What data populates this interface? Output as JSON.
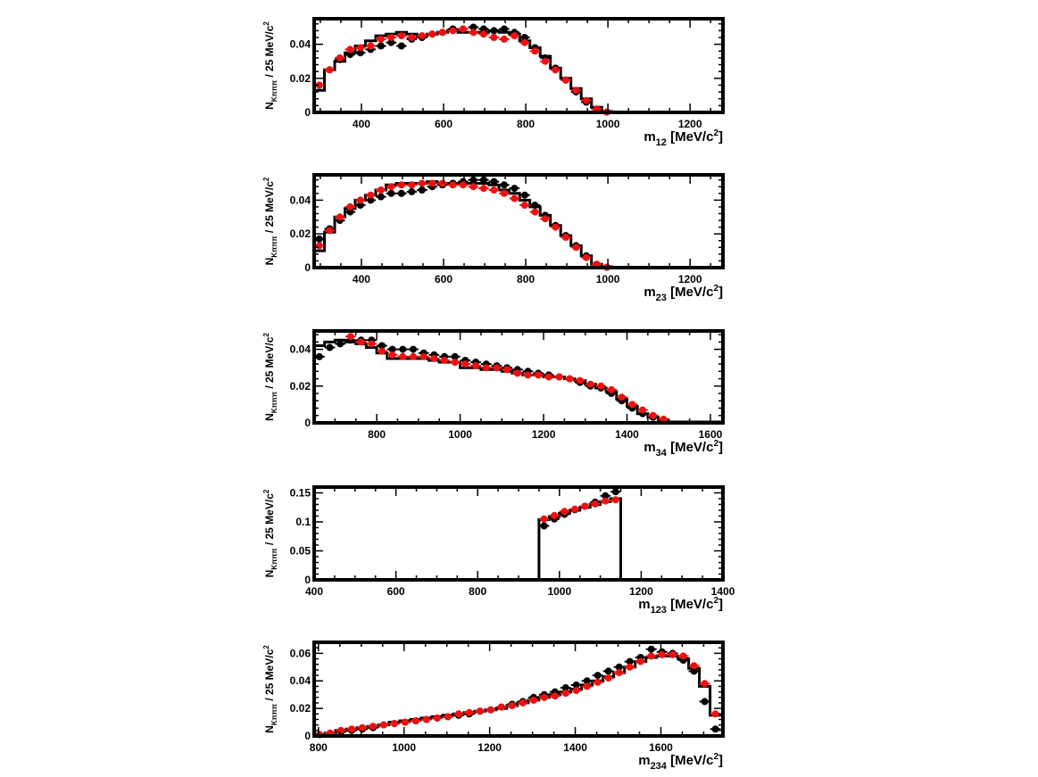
{
  "colors": {
    "black_series": "#000000",
    "red_series": "#ee1111",
    "histogram": "#000000"
  },
  "chart_data": [
    {
      "type": "scatter",
      "ylabel": "N_{Kπππ} / 25 MeV/c^2",
      "xlabel": "m_{12} [MeV/c^2]",
      "xlim": [
        285,
        1280
      ],
      "ylim": [
        0,
        0.055
      ],
      "xticks": [
        400,
        600,
        800,
        1000,
        1200
      ],
      "yticks": [
        0,
        0.02,
        0.04
      ],
      "ytick_labels": [
        "0",
        "0.02",
        "0.04"
      ],
      "bin_width": 25,
      "histogram": {
        "edges": [
          285,
          310,
          335,
          360,
          385,
          410,
          435,
          460,
          485,
          510,
          535,
          560,
          585,
          610,
          635,
          660,
          685,
          710,
          735,
          760,
          785,
          810,
          835,
          860,
          885,
          910,
          935,
          960,
          985,
          1010,
          1280
        ],
        "values": [
          0.013,
          0.025,
          0.03,
          0.035,
          0.039,
          0.042,
          0.045,
          0.046,
          0.047,
          0.046,
          0.045,
          0.046,
          0.047,
          0.048,
          0.047,
          0.047,
          0.047,
          0.048,
          0.047,
          0.046,
          0.042,
          0.038,
          0.033,
          0.026,
          0.02,
          0.014,
          0.008,
          0.003,
          0.0005,
          0
        ]
      },
      "series": [
        {
          "x": [
            297.5,
            322.5,
            347.5,
            372.5,
            397.5,
            422.5,
            447.5,
            472.5,
            497.5,
            522.5,
            547.5,
            572.5,
            597.5,
            622.5,
            647.5,
            672.5,
            697.5,
            722.5,
            747.5,
            772.5,
            797.5,
            822.5,
            847.5,
            872.5,
            897.5,
            922.5,
            947.5,
            972.5,
            997.5
          ],
          "y": [
            0.016,
            0.025,
            0.031,
            0.034,
            0.035,
            0.037,
            0.039,
            0.041,
            0.039,
            0.043,
            0.044,
            0.046,
            0.047,
            0.049,
            0.049,
            0.05,
            0.049,
            0.048,
            0.049,
            0.047,
            0.044,
            0.038,
            0.032,
            0.026,
            0.019,
            0.012,
            0.006,
            0.002,
            0.0002
          ]
        },
        {
          "x": [
            297.5,
            322.5,
            347.5,
            372.5,
            397.5,
            422.5,
            447.5,
            472.5,
            497.5,
            522.5,
            547.5,
            572.5,
            597.5,
            622.5,
            647.5,
            672.5,
            697.5,
            722.5,
            747.5,
            772.5,
            797.5,
            822.5,
            847.5,
            872.5,
            897.5,
            922.5,
            947.5,
            972.5,
            997.5
          ],
          "y": [
            0.016,
            0.025,
            0.032,
            0.037,
            0.038,
            0.039,
            0.043,
            0.044,
            0.045,
            0.044,
            0.045,
            0.046,
            0.047,
            0.048,
            0.049,
            0.047,
            0.046,
            0.044,
            0.043,
            0.045,
            0.041,
            0.036,
            0.03,
            0.025,
            0.019,
            0.013,
            0.007,
            0.002,
            0.0002
          ]
        }
      ]
    },
    {
      "type": "scatter",
      "ylabel": "N_{Kπππ} / 25 MeV/c^2",
      "xlabel": "m_{23} [MeV/c^2]",
      "xlim": [
        285,
        1280
      ],
      "ylim": [
        0,
        0.055
      ],
      "xticks": [
        400,
        600,
        800,
        1000,
        1200
      ],
      "yticks": [
        0,
        0.02,
        0.04
      ],
      "ytick_labels": [
        "0",
        "0.02",
        "0.04"
      ],
      "bin_width": 25,
      "histogram": {
        "edges": [
          285,
          310,
          335,
          360,
          385,
          410,
          435,
          460,
          485,
          510,
          535,
          560,
          585,
          610,
          635,
          660,
          685,
          710,
          735,
          760,
          785,
          810,
          835,
          860,
          885,
          910,
          935,
          960,
          985,
          1010,
          1280
        ],
        "values": [
          0.01,
          0.021,
          0.03,
          0.035,
          0.04,
          0.043,
          0.046,
          0.049,
          0.05,
          0.05,
          0.05,
          0.051,
          0.05,
          0.05,
          0.05,
          0.05,
          0.05,
          0.049,
          0.046,
          0.044,
          0.04,
          0.036,
          0.031,
          0.025,
          0.019,
          0.013,
          0.007,
          0.002,
          0.0005,
          0
        ]
      },
      "series": [
        {
          "x": [
            297.5,
            322.5,
            347.5,
            372.5,
            397.5,
            422.5,
            447.5,
            472.5,
            497.5,
            522.5,
            547.5,
            572.5,
            597.5,
            622.5,
            647.5,
            672.5,
            697.5,
            722.5,
            747.5,
            772.5,
            797.5,
            822.5,
            847.5,
            872.5,
            897.5,
            922.5,
            947.5,
            972.5,
            997.5
          ],
          "y": [
            0.017,
            0.023,
            0.028,
            0.033,
            0.037,
            0.04,
            0.042,
            0.044,
            0.044,
            0.045,
            0.046,
            0.048,
            0.049,
            0.05,
            0.051,
            0.052,
            0.052,
            0.051,
            0.049,
            0.047,
            0.043,
            0.037,
            0.031,
            0.025,
            0.019,
            0.013,
            0.007,
            0.002,
            0.0002
          ]
        },
        {
          "x": [
            297.5,
            322.5,
            347.5,
            372.5,
            397.5,
            422.5,
            447.5,
            472.5,
            497.5,
            522.5,
            547.5,
            572.5,
            597.5,
            622.5,
            647.5,
            672.5,
            697.5,
            722.5,
            747.5,
            772.5,
            797.5,
            822.5,
            847.5,
            872.5,
            897.5,
            922.5,
            947.5,
            972.5,
            997.5
          ],
          "y": [
            0.013,
            0.022,
            0.03,
            0.036,
            0.04,
            0.043,
            0.046,
            0.048,
            0.049,
            0.049,
            0.05,
            0.05,
            0.05,
            0.049,
            0.049,
            0.048,
            0.047,
            0.046,
            0.044,
            0.041,
            0.037,
            0.033,
            0.029,
            0.024,
            0.018,
            0.012,
            0.006,
            0.002,
            0.0002
          ]
        }
      ]
    },
    {
      "type": "scatter",
      "ylabel": "N_{Kπππ} / 25 MeV/c^2",
      "xlabel": "m_{34} [MeV/c^2]",
      "xlim": [
        650,
        1630
      ],
      "ylim": [
        0,
        0.05
      ],
      "xticks": [
        800,
        1000,
        1200,
        1400,
        1600
      ],
      "yticks": [
        0,
        0.02,
        0.04
      ],
      "ytick_labels": [
        "0",
        "0.02",
        "0.04"
      ],
      "bin_width": 25,
      "histogram": {
        "edges": [
          650,
          675,
          700,
          725,
          750,
          775,
          800,
          825,
          850,
          875,
          900,
          925,
          950,
          975,
          1000,
          1025,
          1050,
          1075,
          1100,
          1125,
          1150,
          1175,
          1200,
          1225,
          1250,
          1275,
          1300,
          1325,
          1350,
          1375,
          1400,
          1425,
          1450,
          1475,
          1500,
          1630
        ],
        "values": [
          0.042,
          0.044,
          0.045,
          0.044,
          0.043,
          0.041,
          0.038,
          0.035,
          0.035,
          0.035,
          0.035,
          0.034,
          0.033,
          0.033,
          0.03,
          0.03,
          0.029,
          0.029,
          0.028,
          0.027,
          0.026,
          0.026,
          0.025,
          0.025,
          0.024,
          0.023,
          0.021,
          0.019,
          0.017,
          0.013,
          0.009,
          0.005,
          0.003,
          0.001,
          0.0005
        ]
      },
      "series": [
        {
          "x": [
            662.5,
            687.5,
            712.5,
            737.5,
            762.5,
            787.5,
            812.5,
            837.5,
            862.5,
            887.5,
            912.5,
            937.5,
            962.5,
            987.5,
            1012.5,
            1037.5,
            1062.5,
            1087.5,
            1112.5,
            1137.5,
            1162.5,
            1187.5,
            1212.5,
            1237.5,
            1262.5,
            1287.5,
            1312.5,
            1337.5,
            1362.5,
            1387.5,
            1412.5,
            1437.5,
            1462.5,
            1487.5
          ],
          "y": [
            0.036,
            0.041,
            0.043,
            0.045,
            0.045,
            0.045,
            0.042,
            0.04,
            0.04,
            0.04,
            0.038,
            0.037,
            0.036,
            0.036,
            0.034,
            0.033,
            0.032,
            0.031,
            0.03,
            0.029,
            0.028,
            0.027,
            0.026,
            0.025,
            0.024,
            0.022,
            0.02,
            0.019,
            0.016,
            0.012,
            0.008,
            0.005,
            0.003,
            0.001
          ]
        },
        {
          "x": [
            737.5,
            762.5,
            787.5,
            812.5,
            837.5,
            862.5,
            887.5,
            912.5,
            937.5,
            962.5,
            987.5,
            1012.5,
            1037.5,
            1062.5,
            1087.5,
            1112.5,
            1137.5,
            1162.5,
            1187.5,
            1212.5,
            1237.5,
            1262.5,
            1287.5,
            1312.5,
            1337.5,
            1362.5,
            1387.5,
            1412.5,
            1437.5,
            1462.5,
            1487.5
          ],
          "y": [
            0.047,
            0.044,
            0.043,
            0.039,
            0.037,
            0.036,
            0.036,
            0.036,
            0.035,
            0.034,
            0.033,
            0.032,
            0.031,
            0.03,
            0.03,
            0.029,
            0.027,
            0.026,
            0.026,
            0.025,
            0.025,
            0.024,
            0.023,
            0.021,
            0.02,
            0.018,
            0.014,
            0.01,
            0.007,
            0.004,
            0.002
          ]
        }
      ]
    },
    {
      "type": "scatter",
      "ylabel": "N_{Kπππ} / 25 MeV/c^2",
      "xlabel": "m_{123} [MeV/c^2]",
      "xlim": [
        400,
        1400
      ],
      "ylim": [
        0,
        0.16
      ],
      "xticks": [
        400,
        600,
        800,
        1000,
        1200,
        1400
      ],
      "yticks": [
        0,
        0.05,
        0.1,
        0.15
      ],
      "ytick_labels": [
        "0",
        "0.05",
        "0.1",
        "0.15"
      ],
      "bin_width": 25,
      "histogram": {
        "edges": [
          950,
          975,
          1000,
          1025,
          1050,
          1075,
          1100,
          1125,
          1150
        ],
        "values": [
          0.104,
          0.109,
          0.115,
          0.12,
          0.125,
          0.13,
          0.135,
          0.14
        ]
      },
      "series": [
        {
          "x": [
            962.5,
            987.5,
            1012.5,
            1037.5,
            1062.5,
            1087.5,
            1112.5,
            1137.5
          ],
          "y": [
            0.093,
            0.105,
            0.113,
            0.121,
            0.127,
            0.134,
            0.145,
            0.152
          ]
        },
        {
          "x": [
            962.5,
            987.5,
            1012.5,
            1037.5,
            1062.5,
            1087.5,
            1112.5,
            1137.5
          ],
          "y": [
            0.105,
            0.111,
            0.118,
            0.122,
            0.127,
            0.131,
            0.136,
            0.138
          ]
        }
      ]
    },
    {
      "type": "scatter",
      "ylabel": "N_{Kπππ} / 25 MeV/c^2",
      "xlabel": "m_{234} [MeV/c^2]",
      "xlim": [
        790,
        1745
      ],
      "ylim": [
        0,
        0.068
      ],
      "xticks": [
        800,
        1000,
        1200,
        1400,
        1600
      ],
      "yticks": [
        0,
        0.02,
        0.04,
        0.06
      ],
      "ytick_labels": [
        "0",
        "0.02",
        "0.04",
        "0.06"
      ],
      "bin_width": 25,
      "histogram": {
        "edges": [
          790,
          815,
          840,
          865,
          890,
          915,
          940,
          965,
          990,
          1015,
          1040,
          1065,
          1090,
          1115,
          1140,
          1165,
          1190,
          1215,
          1240,
          1265,
          1290,
          1315,
          1340,
          1365,
          1390,
          1415,
          1440,
          1465,
          1490,
          1515,
          1540,
          1565,
          1590,
          1615,
          1640,
          1665,
          1690,
          1715,
          1745
        ],
        "values": [
          0.001,
          0.002,
          0.004,
          0.005,
          0.006,
          0.007,
          0.008,
          0.01,
          0.011,
          0.012,
          0.013,
          0.014,
          0.015,
          0.016,
          0.017,
          0.018,
          0.019,
          0.02,
          0.022,
          0.024,
          0.026,
          0.028,
          0.03,
          0.032,
          0.034,
          0.037,
          0.04,
          0.043,
          0.046,
          0.05,
          0.054,
          0.057,
          0.058,
          0.058,
          0.056,
          0.049,
          0.036,
          0.015
        ]
      },
      "series": [
        {
          "x": [
            802.5,
            827.5,
            852.5,
            877.5,
            902.5,
            927.5,
            952.5,
            977.5,
            1002.5,
            1027.5,
            1052.5,
            1077.5,
            1102.5,
            1127.5,
            1152.5,
            1177.5,
            1202.5,
            1227.5,
            1252.5,
            1277.5,
            1302.5,
            1327.5,
            1352.5,
            1377.5,
            1402.5,
            1427.5,
            1452.5,
            1477.5,
            1502.5,
            1527.5,
            1552.5,
            1577.5,
            1602.5,
            1627.5,
            1652.5,
            1677.5,
            1702.5,
            1727.5
          ],
          "y": [
            0.001,
            0.002,
            0.003,
            0.004,
            0.005,
            0.006,
            0.008,
            0.009,
            0.01,
            0.011,
            0.012,
            0.013,
            0.014,
            0.015,
            0.016,
            0.018,
            0.019,
            0.021,
            0.023,
            0.025,
            0.028,
            0.03,
            0.032,
            0.035,
            0.037,
            0.04,
            0.044,
            0.047,
            0.05,
            0.054,
            0.057,
            0.063,
            0.061,
            0.06,
            0.055,
            0.047,
            0.025,
            0.005
          ]
        },
        {
          "x": [
            802.5,
            827.5,
            852.5,
            877.5,
            902.5,
            927.5,
            952.5,
            977.5,
            1002.5,
            1027.5,
            1052.5,
            1077.5,
            1102.5,
            1127.5,
            1152.5,
            1177.5,
            1202.5,
            1227.5,
            1252.5,
            1277.5,
            1302.5,
            1327.5,
            1352.5,
            1377.5,
            1402.5,
            1427.5,
            1452.5,
            1477.5,
            1502.5,
            1527.5,
            1552.5,
            1577.5,
            1602.5,
            1627.5,
            1652.5,
            1677.5,
            1702.5,
            1727.5
          ],
          "y": [
            0.001,
            0.002,
            0.004,
            0.005,
            0.006,
            0.007,
            0.008,
            0.009,
            0.01,
            0.011,
            0.012,
            0.013,
            0.014,
            0.016,
            0.017,
            0.018,
            0.019,
            0.021,
            0.022,
            0.024,
            0.026,
            0.028,
            0.029,
            0.031,
            0.033,
            0.036,
            0.039,
            0.042,
            0.046,
            0.05,
            0.054,
            0.058,
            0.059,
            0.059,
            0.058,
            0.051,
            0.038,
            0.016
          ]
        }
      ]
    }
  ]
}
